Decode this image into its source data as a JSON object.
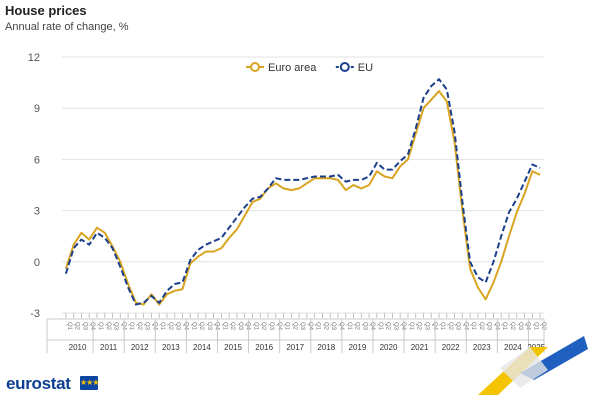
{
  "header": {
    "title": "House prices",
    "subtitle": "Annual rate of change, %"
  },
  "footer": {
    "brand": "eurostat"
  },
  "colors": {
    "euro_area": "#d9a421",
    "eu": "#1b3f8b",
    "grid": "#e3e3e3",
    "axis_text": "#555555",
    "brand_yellow": "#f4c400",
    "brand_blue": "#1f5fc0"
  },
  "chart_data": {
    "type": "line",
    "title": "House prices",
    "subtitle": "Annual rate of change, %",
    "xlabel": "",
    "ylabel": "",
    "ylim": [
      -3,
      12
    ],
    "y_ticks": [
      -3,
      0,
      3,
      6,
      9,
      12
    ],
    "x_tick_label": "Q",
    "years": [
      "2010",
      "2011",
      "2012",
      "2013",
      "2014",
      "2015",
      "2016",
      "2017",
      "2018",
      "2019",
      "2020",
      "2021",
      "2022",
      "2023",
      "2024",
      "2025"
    ],
    "quarters_per_year": 4,
    "last_year_quarters": 2,
    "grid": true,
    "legend_position": "top-center",
    "series": [
      {
        "name": "Euro area",
        "style": "solid",
        "values": [
          -0.4,
          1.0,
          1.7,
          1.3,
          2.0,
          1.7,
          0.9,
          0.0,
          -1.3,
          -2.4,
          -2.5,
          -1.9,
          -2.5,
          -1.9,
          -1.7,
          -1.6,
          -0.1,
          0.3,
          0.6,
          0.6,
          0.8,
          1.4,
          1.9,
          2.7,
          3.5,
          3.7,
          4.3,
          4.6,
          4.3,
          4.2,
          4.3,
          4.6,
          4.9,
          4.9,
          4.9,
          4.8,
          4.2,
          4.5,
          4.3,
          4.5,
          5.3,
          5.0,
          4.9,
          5.6,
          6.0,
          7.5,
          9.0,
          9.5,
          10.0,
          9.4,
          7.0,
          3.0,
          -0.4,
          -1.5,
          -2.2,
          -1.2,
          0.0,
          1.5,
          2.9,
          4.0,
          5.3,
          5.1
        ]
      },
      {
        "name": "EU",
        "style": "dashed",
        "values": [
          -0.7,
          0.8,
          1.3,
          1.0,
          1.7,
          1.4,
          0.8,
          -0.3,
          -1.5,
          -2.5,
          -2.4,
          -2.0,
          -2.4,
          -1.7,
          -1.3,
          -1.2,
          0.1,
          0.7,
          1.0,
          1.2,
          1.4,
          2.0,
          2.6,
          3.2,
          3.7,
          3.8,
          4.3,
          4.9,
          4.8,
          4.8,
          4.8,
          4.9,
          5.0,
          5.0,
          5.0,
          5.1,
          4.7,
          4.8,
          4.8,
          5.0,
          5.8,
          5.4,
          5.4,
          5.9,
          6.3,
          7.8,
          9.6,
          10.3,
          10.7,
          10.1,
          7.6,
          3.5,
          0.0,
          -0.9,
          -1.2,
          0.0,
          1.5,
          2.9,
          3.7,
          4.7,
          5.7,
          5.5
        ]
      }
    ]
  }
}
